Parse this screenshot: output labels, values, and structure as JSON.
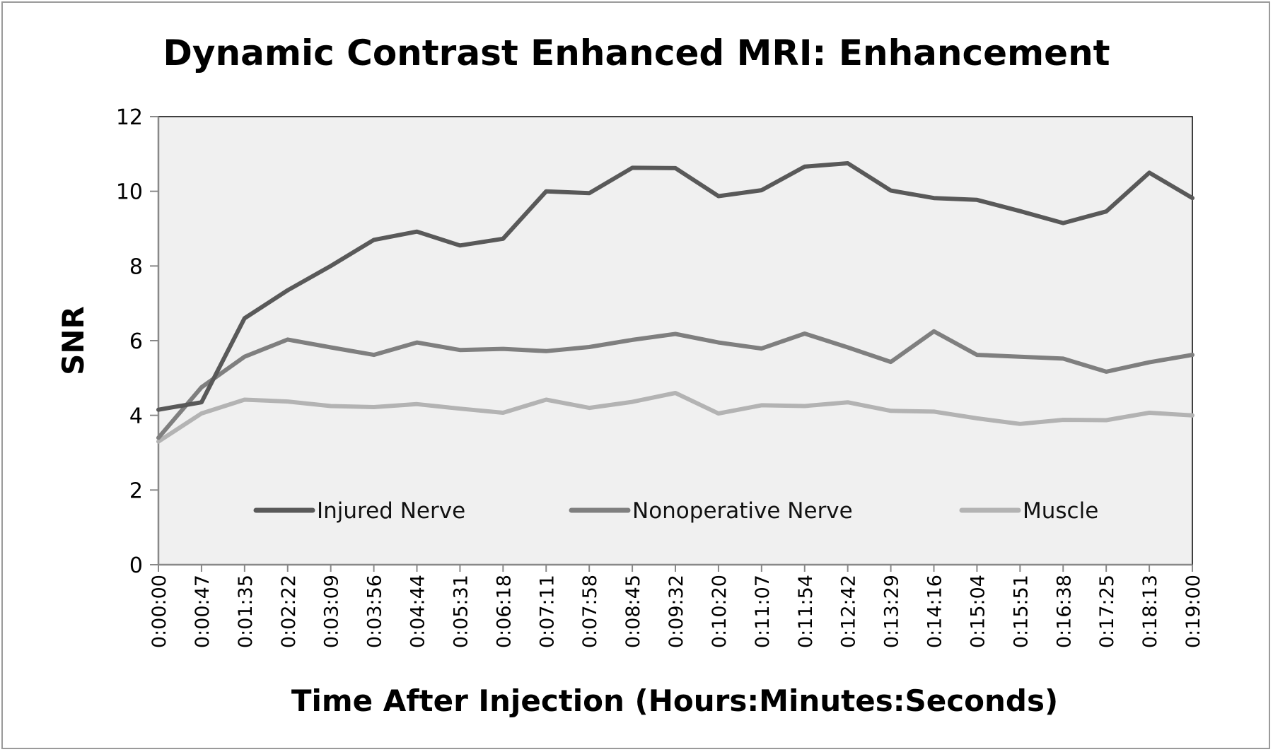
{
  "chart_data": {
    "type": "line",
    "title": "Dynamic Contrast Enhanced MRI: Enhancement",
    "xlabel": "Time After Injection (Hours:Minutes:Seconds)",
    "ylabel": "SNR",
    "ylim": [
      0,
      12
    ],
    "yticks": [
      "0",
      "2",
      "4",
      "6",
      "8",
      "10",
      "12"
    ],
    "grid": false,
    "legend_position": "bottom-inside",
    "categories": [
      "0:00:00",
      "0:00:47",
      "0:01:35",
      "0:02:22",
      "0:03:09",
      "0:03:56",
      "0:04:44",
      "0:05:31",
      "0:06:18",
      "0:07:11",
      "0:07:58",
      "0:08:45",
      "0:09:32",
      "0:10:20",
      "0:11:07",
      "0:11:54",
      "0:12:42",
      "0:13:29",
      "0:14:16",
      "0:15:04",
      "0:15:51",
      "0:16:38",
      "0:17:25",
      "0:18:13",
      "0:19:00"
    ],
    "plot_background": "#f0f0f0",
    "series": [
      {
        "name": "Injured Nerve",
        "color": "#595959",
        "values": [
          4.15,
          4.35,
          6.6,
          7.35,
          8.0,
          8.7,
          8.92,
          8.55,
          8.73,
          10.0,
          9.95,
          10.63,
          10.62,
          9.87,
          10.03,
          10.66,
          10.75,
          10.02,
          9.82,
          9.77,
          9.47,
          9.15,
          9.46,
          10.5,
          9.82
        ]
      },
      {
        "name": "Nonoperative Nerve",
        "color": "#7f7f7f",
        "values": [
          3.4,
          4.75,
          5.57,
          6.03,
          5.82,
          5.62,
          5.95,
          5.75,
          5.78,
          5.72,
          5.83,
          6.02,
          6.18,
          5.95,
          5.79,
          6.19,
          5.82,
          5.43,
          6.25,
          5.62,
          5.57,
          5.52,
          5.17,
          5.42,
          5.62
        ]
      },
      {
        "name": "Muscle",
        "color": "#b3b3b3",
        "values": [
          3.3,
          4.05,
          4.42,
          4.37,
          4.25,
          4.22,
          4.3,
          4.18,
          4.07,
          4.42,
          4.2,
          4.36,
          4.6,
          4.05,
          4.27,
          4.25,
          4.35,
          4.12,
          4.1,
          3.92,
          3.77,
          3.88,
          3.87,
          4.07,
          4.0
        ]
      }
    ]
  }
}
